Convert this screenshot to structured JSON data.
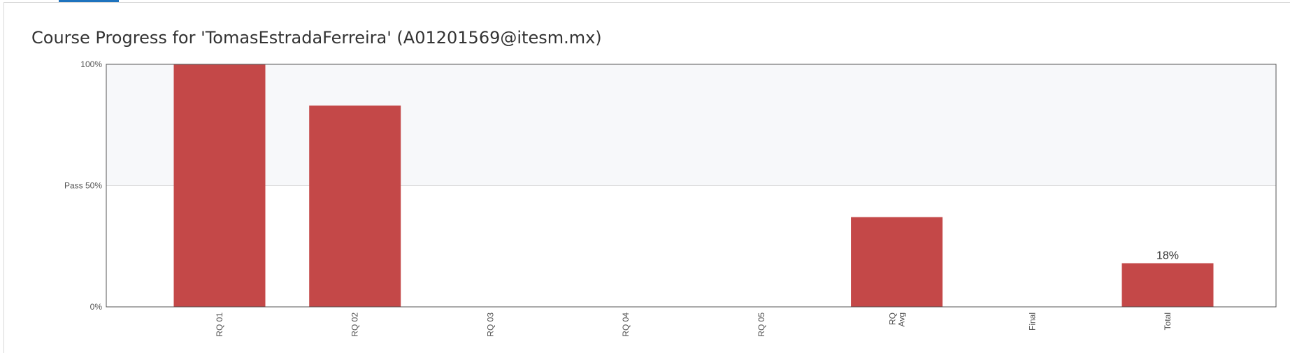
{
  "page": {
    "title": "Course Progress for 'TomasEstradaFerreira' (A01201569@itesm.mx)"
  },
  "colors": {
    "bar": "#c44848",
    "pass_region": "#f7f8fa",
    "tab_indicator": "#1e73be"
  },
  "chart_data": {
    "type": "bar",
    "title": "Course Progress for 'TomasEstradaFerreira' (A01201569@itesm.mx)",
    "categories": [
      "RQ 01",
      "RQ 02",
      "RQ 03",
      "RQ 04",
      "RQ 05",
      "RQ Avg",
      "Final",
      "Total"
    ],
    "values": [
      100,
      83,
      0,
      0,
      0,
      37,
      0,
      18
    ],
    "data_labels": [
      null,
      null,
      null,
      null,
      null,
      null,
      null,
      "18%"
    ],
    "ylim": [
      0,
      100
    ],
    "y_ticks": [
      {
        "value": 0,
        "label": "0%"
      },
      {
        "value": 50,
        "label": "Pass 50%"
      },
      {
        "value": 100,
        "label": "100%"
      }
    ],
    "pass_threshold": 50,
    "xlabel": "",
    "ylabel": "",
    "grid": false
  }
}
